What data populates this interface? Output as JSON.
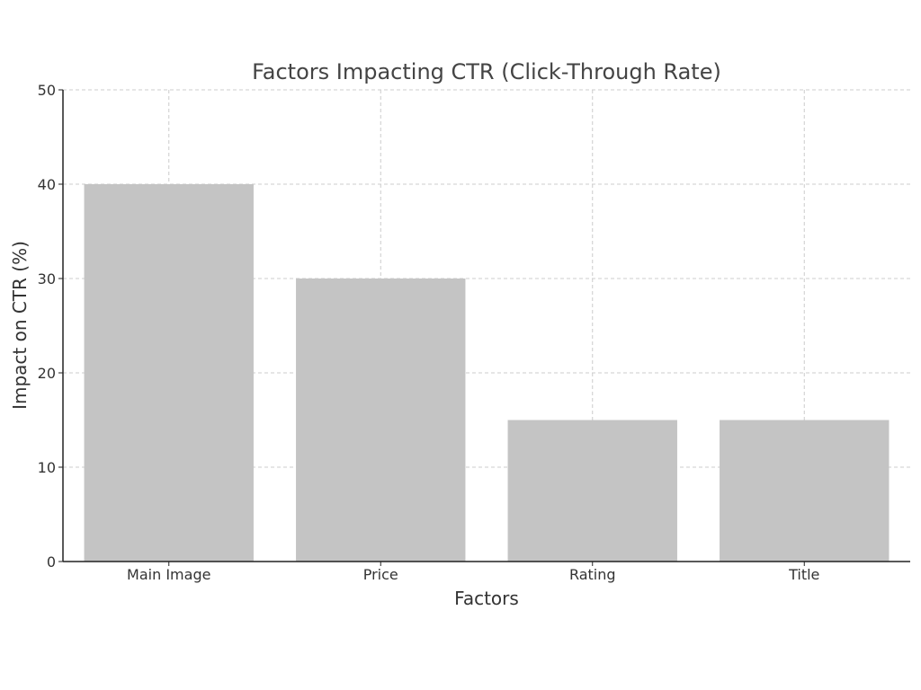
{
  "chart_data": {
    "type": "bar",
    "title": "Factors Impacting CTR (Click-Through Rate)",
    "xlabel": "Factors",
    "ylabel": "Impact on CTR (%)",
    "categories": [
      "Main Image",
      "Price",
      "Rating",
      "Title"
    ],
    "values": [
      40,
      30,
      15,
      15
    ],
    "ylim": [
      0,
      50
    ],
    "yticks": [
      0,
      10,
      20,
      30,
      40,
      50
    ],
    "grid": true,
    "bar_color": "#c4c4c4"
  }
}
